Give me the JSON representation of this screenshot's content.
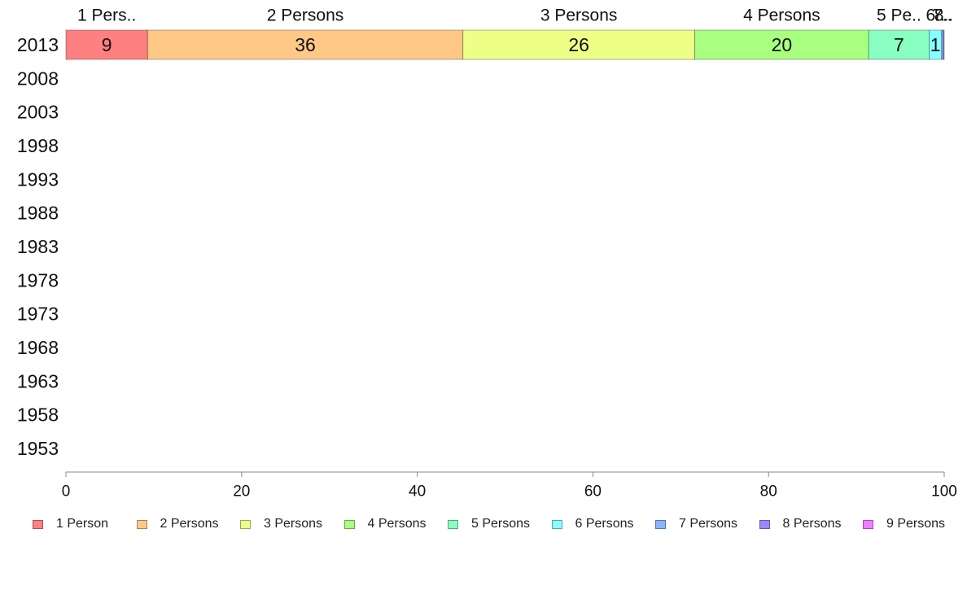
{
  "chart_data": {
    "type": "bar",
    "orientation": "horizontal",
    "stacked": true,
    "percent": true,
    "categories": [
      "2013",
      "2008",
      "2003",
      "1998",
      "1993",
      "1988",
      "1983",
      "1978",
      "1973",
      "1968",
      "1963",
      "1958",
      "1953"
    ],
    "series": [
      {
        "name": "1 Person",
        "color": "#ff8080",
        "values": [
          9.3,
          null,
          null,
          null,
          null,
          null,
          null,
          null,
          null,
          null,
          null,
          null,
          null
        ]
      },
      {
        "name": "2 Persons",
        "color": "#ffc887",
        "values": [
          35.9,
          null,
          null,
          null,
          null,
          null,
          null,
          null,
          null,
          null,
          null,
          null,
          null
        ]
      },
      {
        "name": "3 Persons",
        "color": "#eeff88",
        "values": [
          26.4,
          null,
          null,
          null,
          null,
          null,
          null,
          null,
          null,
          null,
          null,
          null,
          null
        ]
      },
      {
        "name": "4 Persons",
        "color": "#a8ff80",
        "values": [
          19.8,
          null,
          null,
          null,
          null,
          null,
          null,
          null,
          null,
          null,
          null,
          null,
          null
        ]
      },
      {
        "name": "5 Persons",
        "color": "#88ffc0",
        "values": [
          6.9,
          null,
          null,
          null,
          null,
          null,
          null,
          null,
          null,
          null,
          null,
          null,
          null
        ]
      },
      {
        "name": "6 Persons",
        "color": "#88ffff",
        "values": [
          1.4,
          null,
          null,
          null,
          null,
          null,
          null,
          null,
          null,
          null,
          null,
          null,
          null
        ]
      },
      {
        "name": "7 Persons",
        "color": "#88b4ff",
        "values": [
          0.2,
          null,
          null,
          null,
          null,
          null,
          null,
          null,
          null,
          null,
          null,
          null,
          null
        ]
      },
      {
        "name": "8 Persons",
        "color": "#9b88ff",
        "values": [
          0.1,
          null,
          null,
          null,
          null,
          null,
          null,
          null,
          null,
          null,
          null,
          null,
          null
        ]
      },
      {
        "name": "9 Persons",
        "color": "#ee80ff",
        "values": [
          0.0,
          null,
          null,
          null,
          null,
          null,
          null,
          null,
          null,
          null,
          null,
          null,
          null
        ]
      }
    ],
    "data_labels": [
      "9",
      "36",
      "26",
      "20",
      "7",
      "1",
      "",
      "",
      ""
    ],
    "top_labels": [
      "1 Pers..",
      "2 Persons",
      "3 Persons",
      "4 Persons",
      "5 Pe..",
      "6..",
      "7..",
      "8..",
      ""
    ],
    "xlim": [
      0,
      100
    ],
    "xticks": [
      0,
      20,
      40,
      60,
      80,
      100
    ],
    "xlabel": "",
    "ylabel": "",
    "title": "",
    "grid": false,
    "legend_position": "bottom"
  }
}
